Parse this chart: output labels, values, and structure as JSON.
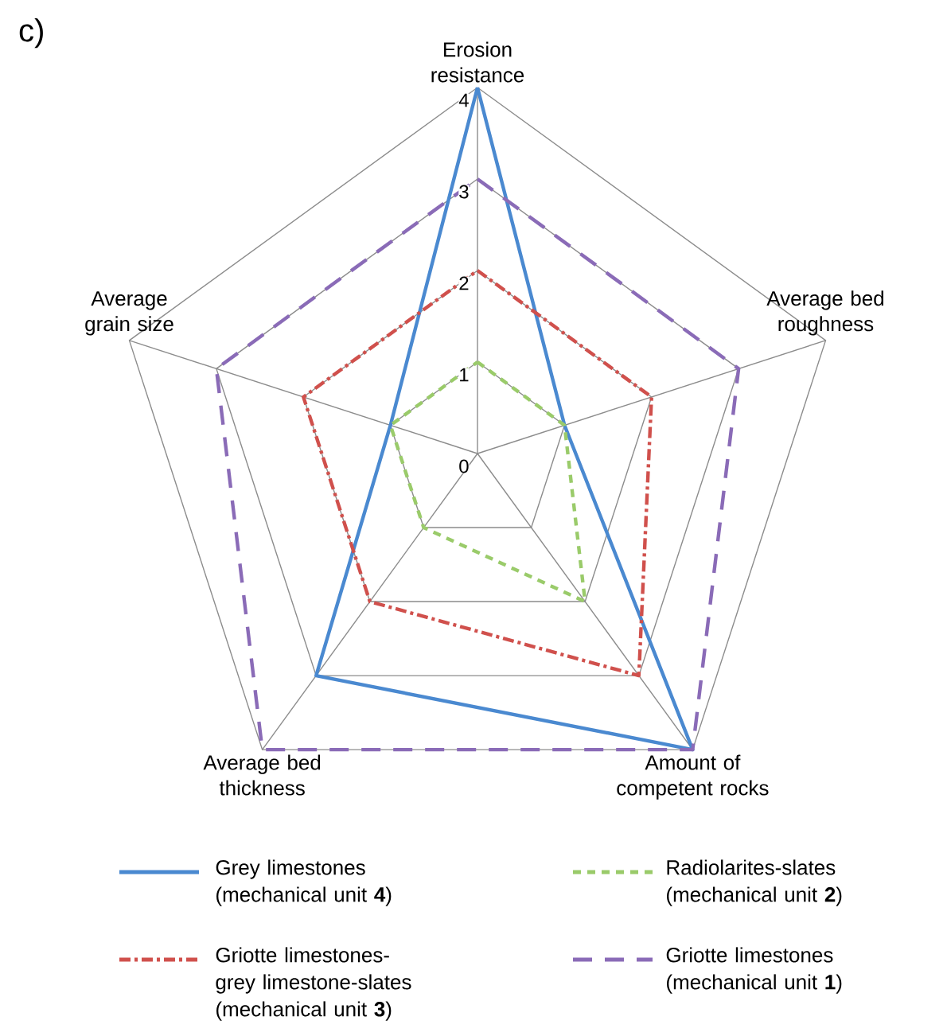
{
  "chart_data": {
    "type": "radar",
    "title": "c)",
    "categories": [
      "Erosion resistance",
      "Average bed roughness",
      "Amount of competent rocks",
      "Average bed thickness",
      "Average grain size"
    ],
    "series": [
      {
        "name": "Grey limestones (mechanical unit **4**)",
        "color": "#4a89d0",
        "line_style": "solid",
        "values": [
          4,
          1,
          4,
          3,
          1
        ]
      },
      {
        "name": "Radiolarites-slates (mechanical unit **2**)",
        "color": "#9acb6a",
        "line_style": "dashed",
        "values": [
          1,
          1,
          2,
          1,
          1
        ]
      },
      {
        "name": "Griotte limestones-grey limestone-slates (mechanical unit **3**)",
        "color": "#d0504c",
        "line_style": "dashdot",
        "values": [
          2,
          2,
          3,
          2,
          2
        ]
      },
      {
        "name": "Griotte limestones (mechanical unit **1**)",
        "color": "#8a6bb7",
        "line_style": "longdashed",
        "values": [
          3,
          3,
          4,
          4,
          3
        ]
      }
    ],
    "ylim": [
      0,
      4
    ],
    "yticks": [
      0,
      1,
      2,
      3,
      4
    ],
    "grid": true,
    "legend": "bottom",
    "marker": "none"
  }
}
